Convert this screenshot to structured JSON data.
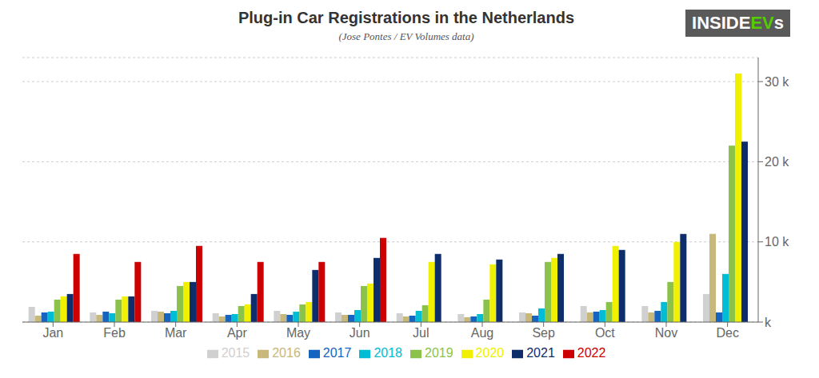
{
  "chart_data": {
    "type": "bar",
    "title": "Plug-in Car Registrations in the Netherlands",
    "subtitle": "(Jose Pontes / EV Volumes data)",
    "annotations": [
      {
        "text": "INSIDE",
        "color": "#ffffff"
      },
      {
        "text": "EV",
        "color": "#55cc00"
      },
      {
        "text": "s",
        "color": "#ffffff"
      }
    ],
    "categories": [
      "Jan",
      "Feb",
      "Mar",
      "Apr",
      "May",
      "Jun",
      "Jul",
      "Aug",
      "Sep",
      "Oct",
      "Nov",
      "Dec"
    ],
    "series": [
      {
        "name": "2015",
        "color": "#d0d0d0",
        "values": [
          1900,
          1200,
          1400,
          1100,
          1400,
          1200,
          1100,
          1000,
          1200,
          2000,
          2000,
          3500
        ]
      },
      {
        "name": "2016",
        "color": "#c8b87a",
        "values": [
          800,
          900,
          1300,
          700,
          1000,
          900,
          700,
          600,
          1100,
          1200,
          1200,
          11000
        ]
      },
      {
        "name": "2017",
        "color": "#1565c0",
        "values": [
          1200,
          1300,
          1100,
          900,
          900,
          900,
          800,
          700,
          800,
          1300,
          1400,
          1200
        ]
      },
      {
        "name": "2018",
        "color": "#00bcd4",
        "values": [
          1300,
          1100,
          1400,
          1000,
          1300,
          1500,
          1400,
          1000,
          1700,
          1500,
          2500,
          6000
        ]
      },
      {
        "name": "2019",
        "color": "#8bc34a",
        "values": [
          2800,
          2800,
          4500,
          2000,
          2200,
          4500,
          2100,
          2800,
          7500,
          2500,
          5000,
          22000
        ]
      },
      {
        "name": "2020",
        "color": "#f0f000",
        "values": [
          3200,
          3200,
          5000,
          2200,
          2500,
          4800,
          7500,
          7200,
          8000,
          9500,
          10000,
          31000
        ]
      },
      {
        "name": "2021",
        "color": "#0d2d6b",
        "values": [
          3500,
          3200,
          5000,
          3500,
          6500,
          8000,
          8500,
          7800,
          8500,
          9000,
          11000,
          22500
        ]
      },
      {
        "name": "2022",
        "color": "#cc0000",
        "values": [
          8500,
          7500,
          9500,
          7500,
          7500,
          10500,
          null,
          null,
          null,
          null,
          null,
          null
        ]
      }
    ],
    "ylim": [
      0,
      33000
    ],
    "yticks": [
      {
        "value": 0,
        "label": "k"
      },
      {
        "value": 10000,
        "label": "10 k"
      },
      {
        "value": 20000,
        "label": "20 k"
      },
      {
        "value": 30000,
        "label": "30 k"
      }
    ],
    "grid": true,
    "legend": "bottom"
  }
}
